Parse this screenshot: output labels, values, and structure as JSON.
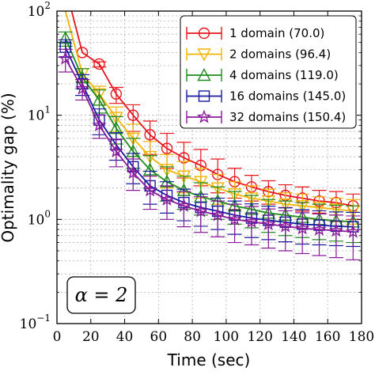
{
  "chart_data": {
    "type": "line",
    "title": "",
    "xlabel": "Time (sec)",
    "ylabel": "Optimality gap (%)",
    "xlim": [
      0,
      180
    ],
    "ylim": [
      0.1,
      100
    ],
    "yscale": "log",
    "grid": true,
    "legend_position": "top-right",
    "annotation": "α = 2",
    "x_ticks": [
      "0",
      "20",
      "40",
      "60",
      "80",
      "100",
      "120",
      "140",
      "160",
      "180"
    ],
    "x_tick_values": [
      0,
      20,
      40,
      60,
      80,
      100,
      120,
      140,
      160,
      180
    ],
    "y_ticks": [
      {
        "base": "10",
        "exp": "−1",
        "value": 0.1
      },
      {
        "base": "10",
        "exp": "0",
        "value": 1
      },
      {
        "base": "10",
        "exp": "1",
        "value": 10
      },
      {
        "base": "10",
        "exp": "2",
        "value": 100
      }
    ],
    "series": [
      {
        "name": "1 domain (70.0)",
        "color": "#e8141c",
        "marker": "circle",
        "x": [
          5,
          15,
          25,
          35,
          45,
          55,
          65,
          75,
          85,
          95,
          105,
          115,
          125,
          135,
          145,
          155,
          165,
          175
        ],
        "y": [
          170,
          40,
          31,
          16,
          10,
          6.5,
          4.8,
          3.9,
          3.3,
          2.7,
          2.3,
          2.05,
          1.85,
          1.7,
          1.6,
          1.5,
          1.45,
          1.35
        ],
        "err_upper": [
          0,
          0,
          1.6,
          2.5,
          2.6,
          2.3,
          1.9,
          1.6,
          1.4,
          1.1,
          0.8,
          0.6,
          0.5,
          0.45,
          0.45,
          0.4,
          0.4,
          0.4
        ],
        "err_lower": [
          0,
          0,
          2.0,
          3.0,
          3.0,
          2.3,
          1.7,
          1.4,
          1.2,
          0.9,
          0.7,
          0.55,
          0.45,
          0.4,
          0.4,
          0.35,
          0.35,
          0.35
        ]
      },
      {
        "name": "2 domains (96.4)",
        "color": "#f0b400",
        "marker": "triangle-down",
        "x": [
          5,
          15,
          25,
          35,
          45,
          55,
          65,
          75,
          85,
          95,
          105,
          115,
          125,
          135,
          145,
          155,
          165,
          175
        ],
        "y": [
          100,
          25,
          16,
          9.5,
          6,
          4,
          3,
          2.6,
          2.3,
          2,
          1.75,
          1.6,
          1.5,
          1.4,
          1.35,
          1.3,
          1.25,
          1.2
        ],
        "err_upper": [
          0,
          3,
          3,
          2.5,
          2.2,
          1.6,
          1.2,
          1.0,
          0.8,
          0.7,
          0.55,
          0.5,
          0.45,
          0.4,
          0.4,
          0.35,
          0.35,
          0.35
        ],
        "err_lower": [
          0,
          4,
          3.5,
          2.5,
          2.0,
          1.4,
          1.0,
          0.8,
          0.7,
          0.6,
          0.5,
          0.45,
          0.4,
          0.35,
          0.35,
          0.3,
          0.3,
          0.3
        ]
      },
      {
        "name": "4 domains (119.0)",
        "color": "#1f8a1f",
        "marker": "triangle-up",
        "x": [
          5,
          15,
          25,
          35,
          45,
          55,
          65,
          75,
          85,
          95,
          105,
          115,
          125,
          135,
          145,
          155,
          165,
          175
        ],
        "y": [
          55,
          23,
          14,
          7.5,
          4.5,
          3,
          2.3,
          1.9,
          1.65,
          1.5,
          1.35,
          1.25,
          1.15,
          1.1,
          1.05,
          1,
          0.97,
          0.95
        ],
        "err_upper": [
          8,
          5,
          3.5,
          2.2,
          1.5,
          1.1,
          0.9,
          0.7,
          0.6,
          0.55,
          0.5,
          0.45,
          0.4,
          0.4,
          0.4,
          0.4,
          0.4,
          0.4
        ],
        "err_lower": [
          9,
          5,
          3.5,
          2.2,
          1.4,
          1.0,
          0.8,
          0.65,
          0.55,
          0.5,
          0.45,
          0.42,
          0.4,
          0.4,
          0.38,
          0.36,
          0.35,
          0.35
        ]
      },
      {
        "name": "16 domains (145.0)",
        "color": "#1a1aa0",
        "marker": "square",
        "x": [
          5,
          15,
          25,
          35,
          45,
          55,
          65,
          75,
          85,
          95,
          105,
          115,
          125,
          135,
          145,
          155,
          165,
          175
        ],
        "y": [
          45,
          20,
          9,
          5.2,
          3.2,
          2.1,
          1.7,
          1.45,
          1.3,
          1.2,
          1.1,
          1.03,
          0.98,
          0.94,
          0.9,
          0.88,
          0.86,
          0.85
        ],
        "err_upper": [
          8,
          4.5,
          2.5,
          1.6,
          1.1,
          0.8,
          0.6,
          0.5,
          0.45,
          0.4,
          0.4,
          0.38,
          0.36,
          0.35,
          0.34,
          0.33,
          0.32,
          0.32
        ],
        "err_lower": [
          9,
          4.5,
          2.5,
          1.5,
          1.0,
          0.7,
          0.55,
          0.48,
          0.44,
          0.4,
          0.38,
          0.36,
          0.34,
          0.33,
          0.32,
          0.31,
          0.3,
          0.3
        ]
      },
      {
        "name": "32 domains (150.4)",
        "color": "#8a1a9a",
        "marker": "star",
        "x": [
          5,
          15,
          25,
          35,
          45,
          55,
          65,
          75,
          85,
          95,
          105,
          115,
          125,
          135,
          145,
          155,
          165,
          175
        ],
        "y": [
          35,
          18,
          8,
          4.5,
          2.8,
          1.9,
          1.55,
          1.35,
          1.2,
          1.1,
          1,
          0.95,
          0.9,
          0.86,
          0.82,
          0.8,
          0.78,
          0.76
        ],
        "err_upper": [
          8,
          4,
          2,
          1.4,
          1.0,
          0.7,
          0.55,
          0.5,
          0.45,
          0.4,
          0.4,
          0.38,
          0.36,
          0.35,
          0.34,
          0.33,
          0.32,
          0.32
        ],
        "err_lower": [
          9,
          4,
          2,
          1.3,
          0.9,
          0.65,
          0.55,
          0.5,
          0.45,
          0.42,
          0.4,
          0.38,
          0.37,
          0.36,
          0.35,
          0.35,
          0.35,
          0.35
        ]
      }
    ]
  }
}
